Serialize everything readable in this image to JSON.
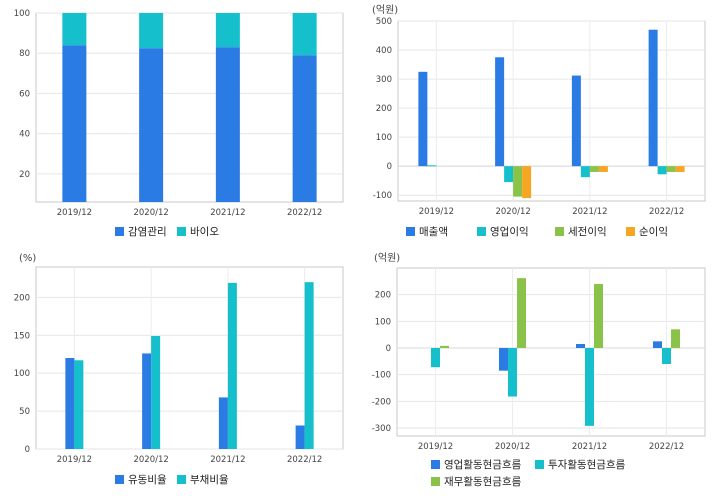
{
  "chart_data": [
    {
      "type": "bar",
      "stacked": true,
      "categories": [
        "2019/12",
        "2020/12",
        "2021/12",
        "2022/12"
      ],
      "series": [
        {
          "name": "감염관리",
          "values": [
            84,
            82.5,
            83,
            79
          ],
          "color": "#2b7be4"
        },
        {
          "name": "바이오",
          "values": [
            16,
            17.5,
            17,
            21
          ],
          "color": "#16bfcc"
        }
      ],
      "unit_label": "",
      "ylim": [
        6,
        100
      ],
      "yticks": [
        20,
        40,
        60,
        80,
        100
      ],
      "grid": true,
      "legend": "bottom"
    },
    {
      "type": "bar",
      "categories": [
        "2019/12",
        "2020/12",
        "2021/12",
        "2022/12"
      ],
      "series": [
        {
          "name": "매출액",
          "values": [
            325,
            375,
            312,
            470
          ],
          "color": "#2b7be4"
        },
        {
          "name": "영업이익",
          "values": [
            3,
            -55,
            -38,
            -28
          ],
          "color": "#16bfcc"
        },
        {
          "name": "세전이익",
          "values": [
            null,
            -105,
            -20,
            -20
          ],
          "color": "#8bc34a"
        },
        {
          "name": "순이익",
          "values": [
            null,
            -110,
            -20,
            -20
          ],
          "color": "#f5a623"
        }
      ],
      "unit_label": "(억원)",
      "ylim": [
        -120,
        500
      ],
      "yticks": [
        -100,
        0,
        100,
        200,
        300,
        400,
        500
      ],
      "grid": true,
      "legend": "bottom"
    },
    {
      "type": "bar",
      "categories": [
        "2019/12",
        "2020/12",
        "2021/12",
        "2022/12"
      ],
      "series": [
        {
          "name": "유동비율",
          "values": [
            120,
            126,
            68,
            31
          ],
          "color": "#2b7be4"
        },
        {
          "name": "부채비율",
          "values": [
            117,
            149,
            219,
            220
          ],
          "color": "#16bfcc"
        }
      ],
      "unit_label": "(%)",
      "ylim": [
        0,
        240
      ],
      "yticks": [
        0,
        50,
        100,
        150,
        200
      ],
      "grid": true,
      "legend": "bottom"
    },
    {
      "type": "bar",
      "categories": [
        "2019/12",
        "2020/12",
        "2021/12",
        "2022/12"
      ],
      "series": [
        {
          "name": "영업활동현금흐름",
          "values": [
            null,
            -85,
            15,
            25
          ],
          "color": "#2b7be4"
        },
        {
          "name": "투자활동현금흐름",
          "values": [
            -72,
            -182,
            -292,
            -60
          ],
          "color": "#16bfcc"
        },
        {
          "name": "재무활동현금흐름",
          "values": [
            8,
            262,
            240,
            70
          ],
          "color": "#8bc34a"
        }
      ],
      "unit_label": "(억원)",
      "ylim": [
        -330,
        300
      ],
      "yticks": [
        -300,
        -200,
        -100,
        0,
        100,
        200
      ],
      "grid": true,
      "legend": "bottom"
    }
  ]
}
